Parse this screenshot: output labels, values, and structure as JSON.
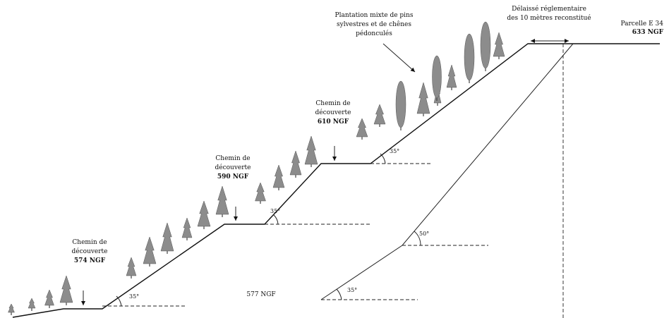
{
  "labels": {
    "planting_line1": "Plantation mixte de pins",
    "planting_line2": "sylvestres et de chênes",
    "planting_line3": "pédonculés",
    "setback_line1": "Délaissé réglementaire",
    "setback_line2": "des 10 mètres reconstitué",
    "parcel_line1": "Parcelle E 34",
    "parcel_line2": "633 NGF",
    "path_line1": "Chemin de",
    "path_line2": "découverte",
    "path_574": "574 NGF",
    "path_590": "590 NGF",
    "path_610": "610 NGF",
    "base_level": "577 NGF",
    "angle_35": "35°",
    "angle_50": "50°"
  },
  "colors": {
    "tree_fill": "#8c8c8c",
    "line": "#111111"
  }
}
